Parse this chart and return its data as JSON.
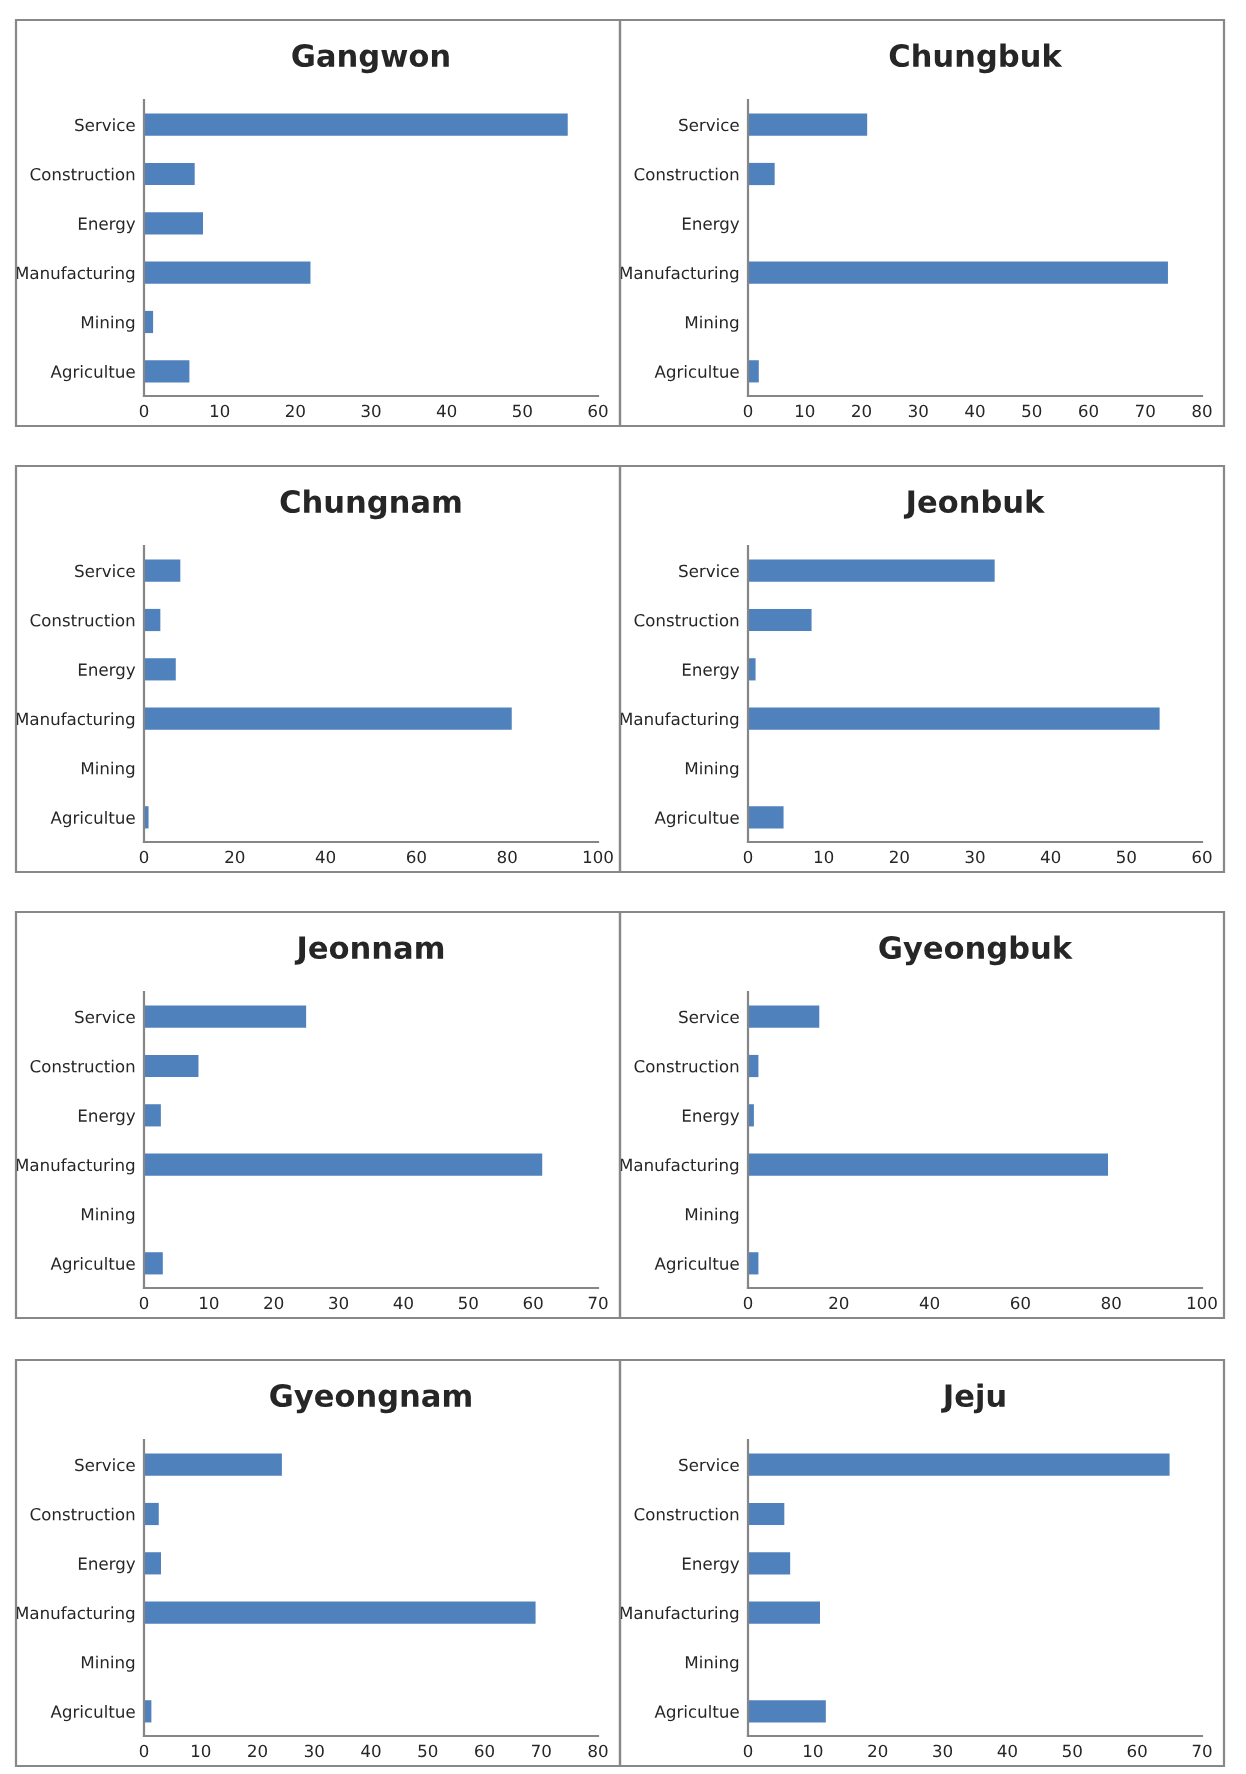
{
  "chart_data": [
    {
      "type": "bar",
      "orientation": "horizontal",
      "title": "Gangwon",
      "categories": [
        "Service",
        "Construction",
        "Energy",
        "Manufacturing",
        "Mining",
        "Agricultue"
      ],
      "values": [
        56,
        6.7,
        7.8,
        22,
        1.2,
        6
      ],
      "color": "#4f81bd",
      "xlim": [
        0,
        60
      ],
      "xticks": [
        0,
        10,
        20,
        30,
        40,
        50,
        60
      ],
      "grid": false
    },
    {
      "type": "bar",
      "orientation": "horizontal",
      "title": "Chungbuk",
      "categories": [
        "Service",
        "Construction",
        "Energy",
        "Manufacturing",
        "Mining",
        "Agricultue"
      ],
      "values": [
        21,
        4.7,
        0,
        74,
        0,
        1.9
      ],
      "color": "#4f81bd",
      "xlim": [
        0,
        80
      ],
      "xticks": [
        0,
        10,
        20,
        30,
        40,
        50,
        60,
        70,
        80
      ],
      "grid": false
    },
    {
      "type": "bar",
      "orientation": "horizontal",
      "title": "Chungnam",
      "categories": [
        "Service",
        "Construction",
        "Energy",
        "Manufacturing",
        "Mining",
        "Agricultue"
      ],
      "values": [
        8,
        3.6,
        7,
        81,
        0,
        1
      ],
      "color": "#4f81bd",
      "xlim": [
        0,
        100
      ],
      "xticks": [
        0,
        20,
        40,
        60,
        80,
        100
      ],
      "grid": false
    },
    {
      "type": "bar",
      "orientation": "horizontal",
      "title": "Jeonbuk",
      "categories": [
        "Service",
        "Construction",
        "Energy",
        "Manufacturing",
        "Mining",
        "Agricultue"
      ],
      "values": [
        32.6,
        8.4,
        1,
        54.4,
        0,
        4.7
      ],
      "color": "#4f81bd",
      "xlim": [
        0,
        60
      ],
      "xticks": [
        0,
        10,
        20,
        30,
        40,
        50,
        60
      ],
      "grid": false
    },
    {
      "type": "bar",
      "orientation": "horizontal",
      "title": "Jeonnam",
      "categories": [
        "Service",
        "Construction",
        "Energy",
        "Manufacturing",
        "Mining",
        "Agricultue"
      ],
      "values": [
        25,
        8.4,
        2.6,
        61.4,
        0,
        2.9
      ],
      "color": "#4f81bd",
      "xlim": [
        0,
        70
      ],
      "xticks": [
        0,
        10,
        20,
        30,
        40,
        50,
        60,
        70
      ],
      "grid": false
    },
    {
      "type": "bar",
      "orientation": "horizontal",
      "title": "Gyeongbuk",
      "categories": [
        "Service",
        "Construction",
        "Energy",
        "Manufacturing",
        "Mining",
        "Agricultue"
      ],
      "values": [
        15.7,
        2.3,
        1.3,
        79.3,
        0,
        2.3
      ],
      "color": "#4f81bd",
      "xlim": [
        0,
        100
      ],
      "xticks": [
        0,
        20,
        40,
        60,
        80,
        100
      ],
      "grid": false
    },
    {
      "type": "bar",
      "orientation": "horizontal",
      "title": "Gyeongnam",
      "categories": [
        "Service",
        "Construction",
        "Energy",
        "Manufacturing",
        "Mining",
        "Agricultue"
      ],
      "values": [
        24.3,
        2.6,
        3,
        69,
        0,
        1.3
      ],
      "color": "#4f81bd",
      "xlim": [
        0,
        80
      ],
      "xticks": [
        0,
        10,
        20,
        30,
        40,
        50,
        60,
        70,
        80
      ],
      "grid": false
    },
    {
      "type": "bar",
      "orientation": "horizontal",
      "title": "Jeju",
      "categories": [
        "Service",
        "Construction",
        "Energy",
        "Manufacturing",
        "Mining",
        "Agricultue"
      ],
      "values": [
        65,
        5.6,
        6.5,
        11.1,
        0,
        12
      ],
      "color": "#4f81bd",
      "xlim": [
        0,
        70
      ],
      "xticks": [
        0,
        10,
        20,
        30,
        40,
        50,
        60,
        70
      ],
      "grid": false
    }
  ]
}
